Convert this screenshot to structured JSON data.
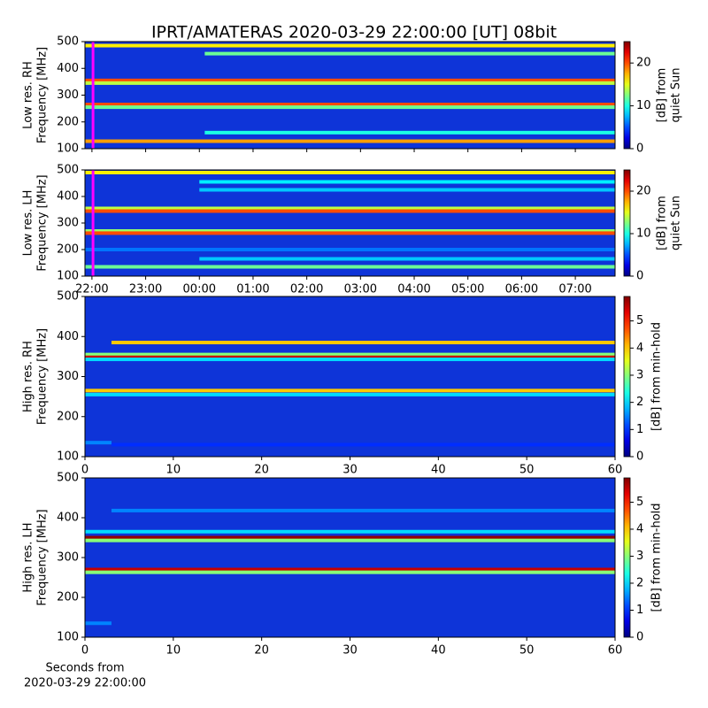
{
  "chart_data": [
    {
      "type": "heatmap",
      "title": "IPRT/AMATERAS 2020-03-29 22:00:00 [UT]   08bit",
      "ylabel": [
        "Low res. RH",
        "Frequency [MHz]"
      ],
      "colormap": "jet",
      "ylim": [
        100,
        500
      ],
      "yticks": [
        100,
        200,
        300,
        400,
        500
      ],
      "xlim": [
        -0.13,
        9.74
      ],
      "xticks": [
        0,
        1,
        2,
        3,
        4,
        5,
        6,
        7,
        8,
        9
      ],
      "clim": [
        0,
        25
      ],
      "cticks": [
        0,
        10,
        20
      ],
      "clabel": [
        "[dB] from",
        "quiet Sun"
      ],
      "marker_x": 0.02,
      "marker_color": "#ff00ff",
      "bands": [
        {
          "freq": 485,
          "value": 16,
          "start": -0.13,
          "end": 9.74
        },
        {
          "freq": 455,
          "value": 12,
          "start": 2.1,
          "end": 9.74
        },
        {
          "freq": 355,
          "value": 20,
          "start": -0.13,
          "end": 9.74
        },
        {
          "freq": 345,
          "value": 14,
          "start": -0.13,
          "end": 9.74
        },
        {
          "freq": 265,
          "value": 20,
          "start": -0.13,
          "end": 9.74
        },
        {
          "freq": 255,
          "value": 12,
          "start": -0.13,
          "end": 9.74
        },
        {
          "freq": 160,
          "value": 10,
          "start": 2.1,
          "end": 9.74
        },
        {
          "freq": 128,
          "value": 18,
          "start": -0.13,
          "end": 9.74
        }
      ]
    },
    {
      "type": "heatmap",
      "ylabel": [
        "Low res. LH",
        "Frequency [MHz]"
      ],
      "colormap": "jet",
      "ylim": [
        100,
        500
      ],
      "yticks": [
        100,
        200,
        300,
        400,
        500
      ],
      "xlim": [
        -0.13,
        9.74
      ],
      "xticks": [
        {
          "value": 0,
          "label": "22:00"
        },
        {
          "value": 1,
          "label": "23:00"
        },
        {
          "value": 2,
          "label": "00:00"
        },
        {
          "value": 3,
          "label": "01:00"
        },
        {
          "value": 4,
          "label": "02:00"
        },
        {
          "value": 5,
          "label": "03:00"
        },
        {
          "value": 6,
          "label": "04:00"
        },
        {
          "value": 7,
          "label": "05:00"
        },
        {
          "value": 8,
          "label": "06:00"
        },
        {
          "value": 9,
          "label": "07:00"
        }
      ],
      "clim": [
        0,
        25
      ],
      "cticks": [
        0,
        10,
        20
      ],
      "clabel": [
        "[dB] from",
        "quiet Sun"
      ],
      "marker_x": 0.02,
      "marker_color": "#ff00ff",
      "bands": [
        {
          "freq": 490,
          "value": 16,
          "start": -0.13,
          "end": 9.74
        },
        {
          "freq": 455,
          "value": 9,
          "start": 2.0,
          "end": 9.74
        },
        {
          "freq": 425,
          "value": 8,
          "start": 2.0,
          "end": 9.74
        },
        {
          "freq": 355,
          "value": 14,
          "start": -0.13,
          "end": 9.74
        },
        {
          "freq": 345,
          "value": 20,
          "start": -0.13,
          "end": 9.74
        },
        {
          "freq": 270,
          "value": 13,
          "start": -0.13,
          "end": 9.74
        },
        {
          "freq": 262,
          "value": 20,
          "start": -0.13,
          "end": 9.74
        },
        {
          "freq": 200,
          "value": 6,
          "start": -0.13,
          "end": 9.74
        },
        {
          "freq": 165,
          "value": 8,
          "start": 2.0,
          "end": 9.74
        },
        {
          "freq": 135,
          "value": 12,
          "start": -0.13,
          "end": 9.74
        }
      ]
    },
    {
      "type": "heatmap",
      "ylabel": [
        "High res. RH",
        "Frequency [MHz]"
      ],
      "colormap": "jet",
      "ylim": [
        100,
        500
      ],
      "yticks": [
        100,
        200,
        300,
        400,
        500
      ],
      "xlim": [
        0,
        60
      ],
      "xticks": [
        0,
        10,
        20,
        30,
        40,
        50,
        60
      ],
      "clim": [
        0,
        5.9
      ],
      "cticks": [
        0,
        1,
        2,
        3,
        4,
        5
      ],
      "clabel": [
        "[dB] from min-hold"
      ],
      "bands": [
        {
          "freq": 385,
          "value": 4,
          "start": 3,
          "end": 60
        },
        {
          "freq": 355,
          "value": 3,
          "start": 0,
          "end": 60
        },
        {
          "freq": 348,
          "value": 5.5,
          "start": 0,
          "end": 60
        },
        {
          "freq": 343,
          "value": 2,
          "start": 0,
          "end": 60
        },
        {
          "freq": 265,
          "value": 4,
          "start": 0,
          "end": 60
        },
        {
          "freq": 255,
          "value": 2,
          "start": 0,
          "end": 60
        },
        {
          "freq": 135,
          "value": 1.5,
          "start": 0,
          "end": 3
        },
        {
          "freq": 130,
          "value": 1,
          "start": 3,
          "end": 60
        }
      ]
    },
    {
      "type": "heatmap",
      "ylabel": [
        "High res. LH",
        "Frequency [MHz]"
      ],
      "colormap": "jet",
      "ylim": [
        100,
        500
      ],
      "yticks": [
        100,
        200,
        300,
        400,
        500
      ],
      "xlim": [
        0,
        60
      ],
      "xticks": [
        0,
        10,
        20,
        30,
        40,
        50,
        60
      ],
      "xlabel": [
        "Seconds from",
        "2020-03-29 22:00:00"
      ],
      "clim": [
        0,
        5.9
      ],
      "cticks": [
        0,
        1,
        2,
        3,
        4,
        5
      ],
      "clabel": [
        "[dB] from min-hold"
      ],
      "bands": [
        {
          "freq": 418,
          "value": 1.5,
          "start": 3,
          "end": 60
        },
        {
          "freq": 365,
          "value": 2,
          "start": 0,
          "end": 60
        },
        {
          "freq": 350,
          "value": 5.8,
          "start": 0,
          "end": 60
        },
        {
          "freq": 343,
          "value": 3,
          "start": 0,
          "end": 60
        },
        {
          "freq": 270,
          "value": 5.5,
          "start": 0,
          "end": 60
        },
        {
          "freq": 263,
          "value": 3,
          "start": 0,
          "end": 60
        },
        {
          "freq": 135,
          "value": 1.5,
          "start": 0,
          "end": 3
        }
      ]
    }
  ]
}
